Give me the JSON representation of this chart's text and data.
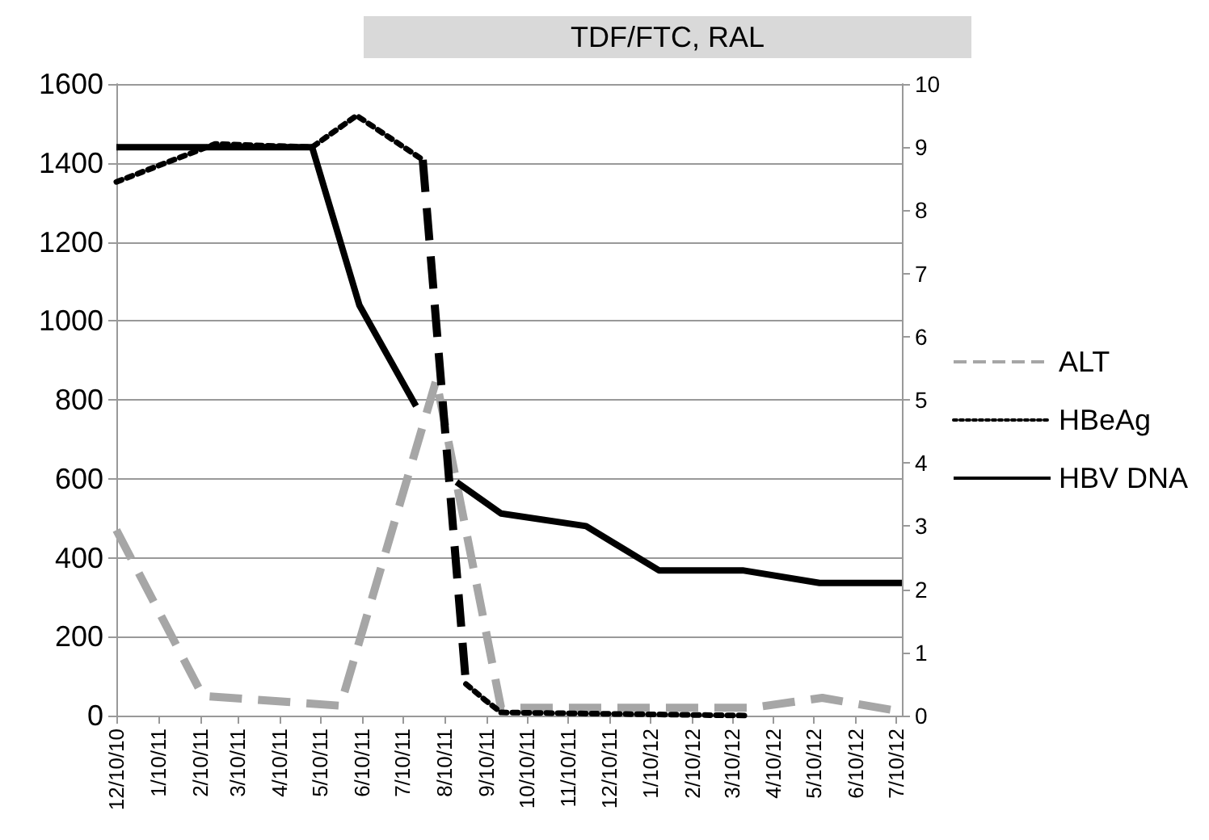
{
  "chart_data": {
    "type": "line",
    "title": "TDF/FTC, RAL",
    "xlim": [
      "2010-12-10",
      "2012-07-14"
    ],
    "xticks": [
      {
        "value": "2010-12-10",
        "label": "12/10/10"
      },
      {
        "value": "2011-01-10",
        "label": "1/10/11"
      },
      {
        "value": "2011-02-10",
        "label": "2/10/11"
      },
      {
        "value": "2011-03-10",
        "label": "3/10/11"
      },
      {
        "value": "2011-04-10",
        "label": "4/10/11"
      },
      {
        "value": "2011-05-10",
        "label": "5/10/11"
      },
      {
        "value": "2011-06-10",
        "label": "6/10/11"
      },
      {
        "value": "2011-07-10",
        "label": "7/10/11"
      },
      {
        "value": "2011-08-10",
        "label": "8/10/11"
      },
      {
        "value": "2011-09-10",
        "label": "9/10/11"
      },
      {
        "value": "2011-10-10",
        "label": "10/10/11"
      },
      {
        "value": "2011-11-10",
        "label": "11/10/11"
      },
      {
        "value": "2011-12-10",
        "label": "12/10/11"
      },
      {
        "value": "2012-01-10",
        "label": "1/10/12"
      },
      {
        "value": "2012-02-10",
        "label": "2/10/12"
      },
      {
        "value": "2012-03-10",
        "label": "3/10/12"
      },
      {
        "value": "2012-04-10",
        "label": "4/10/12"
      },
      {
        "value": "2012-05-10",
        "label": "5/10/12"
      },
      {
        "value": "2012-06-10",
        "label": "6/10/12"
      },
      {
        "value": "2012-07-10",
        "label": "7/10/12"
      }
    ],
    "ylim": [
      0,
      1600
    ],
    "yticks": [
      0,
      200,
      400,
      600,
      800,
      1000,
      1200,
      1400,
      1600
    ],
    "y2lim": [
      0,
      10
    ],
    "y2ticks": [
      0,
      1,
      2,
      3,
      4,
      5,
      6,
      7,
      8,
      9,
      10
    ],
    "grid": "y",
    "legend": "right",
    "marker": "none",
    "series": [
      {
        "name": "ALT",
        "color": "#a6a6a6",
        "line_style": "dashed",
        "x": [
          "2010-12-10",
          "2011-02-12",
          "2011-05-25",
          "2011-08-04",
          "2011-09-21",
          "2012-03-25",
          "2012-05-16",
          "2012-07-14"
        ],
        "values": [
          470,
          50,
          25,
          850,
          20,
          20,
          45,
          10
        ]
      },
      {
        "name": "HBeAg",
        "color": "#000000",
        "line_style": "dotted",
        "axis": "y2",
        "x": [
          "2010-12-10",
          "2011-02-21",
          "2011-05-04",
          "2011-06-06",
          "2011-07-25"
        ],
        "values": [
          8.45,
          9.05,
          9.0,
          9.5,
          8.8
        ]
      },
      {
        "color": "#000000",
        "line_style": "dashed",
        "axis": "y2",
        "x": [
          "2011-07-25",
          "2011-08-26"
        ],
        "values": [
          8.8,
          0.5
        ]
      },
      {
        "color": "#000000",
        "line_style": "dotted",
        "axis": "y2",
        "x": [
          "2011-08-26",
          "2011-09-09",
          "2011-09-21",
          "2012-03-22"
        ],
        "values": [
          0.5,
          0.25,
          0.05,
          0
        ]
      },
      {
        "name": "HBV DNA",
        "color": "#000000",
        "line_style": "solid",
        "axis": "y2",
        "x": [
          "2010-12-10",
          "2011-05-04",
          "2011-06-08",
          "2011-07-20"
        ],
        "values": [
          9.0,
          9.0,
          6.5,
          4.9
        ]
      },
      {
        "color": "#000000",
        "line_style": "solid",
        "axis": "y2",
        "x": [
          "2011-08-19",
          "2011-09-21",
          "2011-11-23",
          "2012-01-16",
          "2012-03-18",
          "2012-05-14",
          "2012-07-14"
        ],
        "values": [
          3.7,
          3.2,
          3.0,
          2.3,
          2.3,
          2.1,
          2.1
        ]
      }
    ]
  }
}
